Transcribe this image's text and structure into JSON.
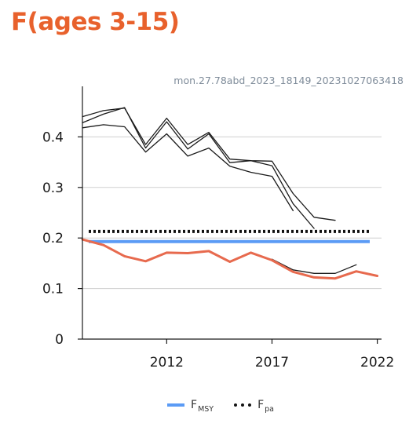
{
  "header": {
    "title": "F(ages 3-15)",
    "run_id": "mon.27.78abd_2023_18149_20231027063418"
  },
  "colors": {
    "title": "#e8612c",
    "fmsy": "#5b9bf5",
    "fpa": "#111111",
    "f_current": "#e76a4e",
    "retro": "#1a1a1a",
    "grid": "#cfcfcf",
    "axis": "#1a1a1a"
  },
  "legend": {
    "fmsy_main": "F",
    "fmsy_sub": "MSY",
    "fpa_main": "F",
    "fpa_sub": "pa"
  },
  "chart_data": {
    "type": "line",
    "title": "F(ages 3-15)",
    "xlabel": "",
    "ylabel": "",
    "xlim": [
      2008,
      2022.2
    ],
    "ylim": [
      0,
      0.5
    ],
    "x_ticks": [
      2012,
      2017,
      2022
    ],
    "y_ticks": [
      0,
      0.1,
      0.2,
      0.3,
      0.4
    ],
    "grid": "horizontal",
    "legend_position": "bottom",
    "reference_lines": [
      {
        "name": "FMSY",
        "y": 0.193,
        "color": "#5b9bf5",
        "style": "solid"
      },
      {
        "name": "Fpa",
        "y": 0.213,
        "color": "#111111",
        "style": "dotted"
      }
    ],
    "series": [
      {
        "x": [
          2008,
          2009,
          2010,
          2011,
          2012,
          2013,
          2014,
          2015,
          2016,
          2017,
          2018,
          2019,
          2020,
          2021,
          2022
        ],
        "values": [
          0.197,
          0.186,
          0.164,
          0.154,
          0.171,
          0.17,
          0.174,
          0.153,
          0.171,
          0.156,
          0.133,
          0.122,
          0.12,
          0.134,
          0.125
        ],
        "color": "#e76a4e",
        "width": 3
      },
      {
        "x": [
          2008,
          2009,
          2010,
          2011,
          2012,
          2013,
          2014,
          2015,
          2016,
          2017,
          2018,
          2019
        ],
        "values": [
          0.418,
          0.424,
          0.42,
          0.37,
          0.406,
          0.362,
          0.378,
          0.342,
          0.33,
          0.322,
          0.254,
          null
        ],
        "color": "#1a1a1a",
        "width": 1.3
      },
      {
        "x": [
          2008,
          2009,
          2010,
          2011,
          2012,
          2013,
          2014,
          2015,
          2016,
          2017,
          2018,
          2019
        ],
        "values": [
          0.428,
          0.445,
          0.458,
          0.378,
          0.43,
          0.376,
          0.406,
          0.349,
          0.353,
          0.343,
          0.268,
          0.219
        ],
        "color": "#1a1a1a",
        "width": 1.3
      },
      {
        "x": [
          2008,
          2009,
          2010,
          2011,
          2012,
          2013,
          2014,
          2015,
          2016,
          2017,
          2018,
          2019,
          2020
        ],
        "values": [
          0.44,
          0.452,
          0.457,
          0.385,
          0.437,
          0.385,
          0.409,
          0.356,
          0.353,
          0.352,
          0.288,
          0.241,
          0.235
        ],
        "color": "#1a1a1a",
        "width": 1.3
      },
      {
        "x": [
          2017,
          2018,
          2019,
          2020,
          2021
        ],
        "values": [
          0.158,
          0.137,
          0.13,
          0.13,
          0.147
        ],
        "color": "#1a1a1a",
        "width": 1.3
      }
    ]
  }
}
